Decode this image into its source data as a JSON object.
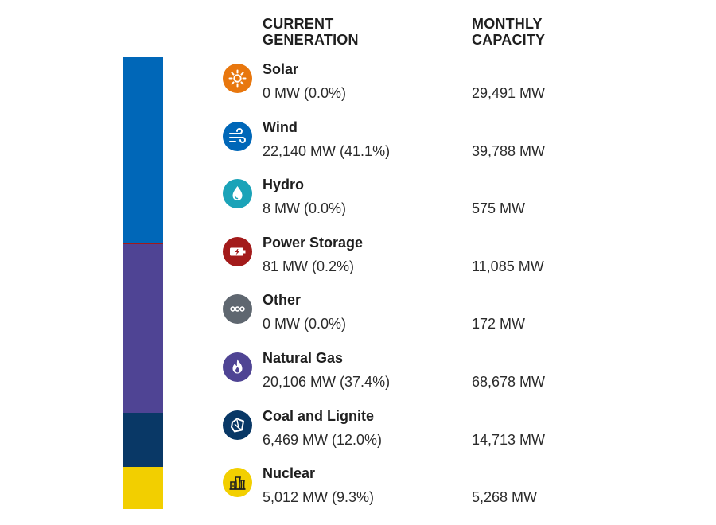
{
  "headers": {
    "current_generation": "CURRENT\nGENERATION",
    "monthly_capacity": "MONTHLY\nCAPACITY"
  },
  "chart_data": {
    "type": "table",
    "columns": [
      "CURRENT GENERATION",
      "MONTHLY CAPACITY"
    ],
    "rows": [
      {
        "name": "Solar",
        "icon": "sun-icon",
        "color": "#E8770E",
        "current_label": "0 MW (0.0%)",
        "capacity_label": "29,491 MW",
        "current_mw": 0,
        "share_pct": 0.0,
        "capacity_mw": 29491
      },
      {
        "name": "Wind",
        "icon": "wind-icon",
        "color": "#0067B8",
        "current_label": "22,140 MW (41.1%)",
        "capacity_label": "39,788 MW",
        "current_mw": 22140,
        "share_pct": 41.1,
        "capacity_mw": 39788
      },
      {
        "name": "Hydro",
        "icon": "water-drop-icon",
        "color": "#1BA3B8",
        "current_label": "8 MW (0.0%)",
        "capacity_label": "575 MW",
        "current_mw": 8,
        "share_pct": 0.0,
        "capacity_mw": 575
      },
      {
        "name": "Power Storage",
        "icon": "battery-icon",
        "color": "#A31B1B",
        "current_label": "81 MW (0.2%)",
        "capacity_label": "11,085 MW",
        "current_mw": 81,
        "share_pct": 0.2,
        "capacity_mw": 11085
      },
      {
        "name": "Other",
        "icon": "more-dots-icon",
        "color": "#5F6770",
        "current_label": "0 MW (0.0%)",
        "capacity_label": "172 MW",
        "current_mw": 0,
        "share_pct": 0.0,
        "capacity_mw": 172
      },
      {
        "name": "Natural Gas",
        "icon": "flame-icon",
        "color": "#4F4494",
        "current_label": "20,106 MW (37.4%)",
        "capacity_label": "68,678 MW",
        "current_mw": 20106,
        "share_pct": 37.4,
        "capacity_mw": 68678
      },
      {
        "name": "Coal and Lignite",
        "icon": "coal-icon",
        "color": "#093866",
        "current_label": "6,469 MW (12.0%)",
        "capacity_label": "14,713 MW",
        "current_mw": 6469,
        "share_pct": 12.0,
        "capacity_mw": 14713
      },
      {
        "name": "Nuclear",
        "icon": "nuclear-plant-icon",
        "color": "#F2CF00",
        "current_label": "5,012 MW (9.3%)",
        "capacity_label": "5,268 MW",
        "current_mw": 5012,
        "share_pct": 9.3,
        "capacity_mw": 5268
      }
    ],
    "stacked_bar": {
      "type": "bar",
      "orientation": "vertical-stacked",
      "segments": [
        {
          "name": "Wind",
          "value": 41.1,
          "color": "#0067B8"
        },
        {
          "name": "Hydro",
          "value": 0.0,
          "color": "#1BA3B8"
        },
        {
          "name": "Power Storage",
          "value": 0.2,
          "color": "#A31B1B"
        },
        {
          "name": "Natural Gas",
          "value": 37.4,
          "color": "#4F4494"
        },
        {
          "name": "Coal and Lignite",
          "value": 12.0,
          "color": "#093866"
        },
        {
          "name": "Nuclear",
          "value": 9.3,
          "color": "#F2CF00"
        }
      ]
    }
  }
}
